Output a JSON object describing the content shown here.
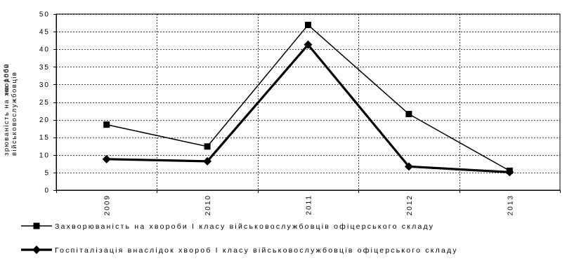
{
  "chart_data": {
    "type": "line",
    "title": "",
    "xlabel": "",
    "ylabel": "Захворюваність на хвороби І класу на 1000 військовослужбовців",
    "ylabel_lines": [
      "зрюваність на хвороби",
      "військовослужбовців"
    ],
    "ylabel_overlap": "на 1000",
    "categories": [
      "2009",
      "2010",
      "2011",
      "2012",
      "2013"
    ],
    "x_tick_labels": [
      "2009",
      "2010",
      "2011",
      "2012",
      "2013"
    ],
    "y_tick_labels": [
      "0",
      "5",
      "10",
      "15",
      "20",
      "25",
      "30",
      "35",
      "40",
      "45",
      "50"
    ],
    "ylim": [
      0,
      50
    ],
    "grid": true,
    "legend_position": "bottom",
    "series": [
      {
        "name": "Захворюваність на хвороби І класу військовослужбовців офіцерського складу",
        "marker": "square",
        "line_style": "thin",
        "color": "#000000",
        "values": [
          18.6,
          12.4,
          46.9,
          21.6,
          5.5
        ]
      },
      {
        "name": "Госпіталізація внаслідок хвороб І класу військовослужбовців  офіцерського складу",
        "marker": "diamond",
        "line_style": "thick",
        "color": "#000000",
        "values": [
          8.8,
          8.2,
          41.3,
          6.7,
          5.1
        ]
      }
    ]
  }
}
